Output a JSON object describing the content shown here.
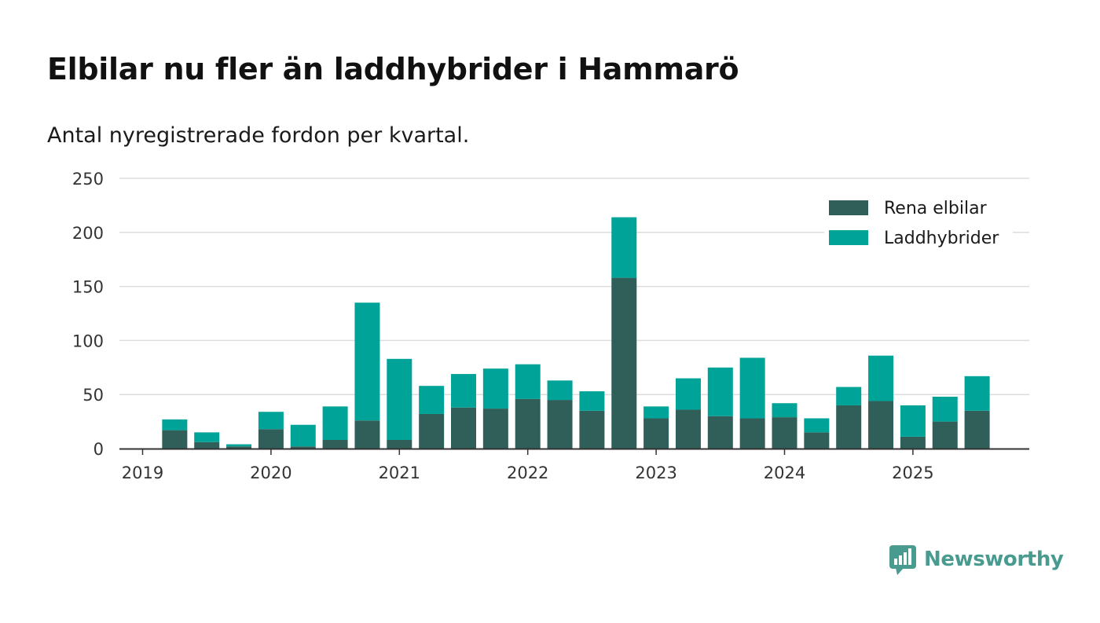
{
  "title": "Elbilar nu fler än laddhybrider i Hammarö",
  "subtitle": "Antal nyregistrerade fordon per kvartal.",
  "brand": {
    "name": "Newsworthy",
    "icon": "newsworthy-logo-icon",
    "color": "#4a9b8f"
  },
  "colors": {
    "rena_elbilar": "#2f5f58",
    "laddhybrider": "#00a398",
    "grid": "#dddddd",
    "axis": "#333333"
  },
  "chart_data": {
    "type": "bar",
    "stacked": true,
    "title": "Elbilar nu fler än laddhybrider i Hammarö",
    "subtitle": "Antal nyregistrerade fordon per kvartal.",
    "xlabel": "",
    "ylabel": "",
    "ylim": [
      0,
      250
    ],
    "yticks": [
      0,
      50,
      100,
      150,
      200,
      250
    ],
    "xtick_labels": [
      "2019",
      "2020",
      "2021",
      "2022",
      "2023",
      "2024",
      "2025"
    ],
    "legend_position": "top-right",
    "categories": [
      "2019 Q1",
      "2019 Q2",
      "2019 Q3",
      "2019 Q4",
      "2020 Q1",
      "2020 Q2",
      "2020 Q3",
      "2020 Q4",
      "2021 Q1",
      "2021 Q2",
      "2021 Q3",
      "2021 Q4",
      "2022 Q1",
      "2022 Q2",
      "2022 Q3",
      "2022 Q4",
      "2023 Q1",
      "2023 Q2",
      "2023 Q3",
      "2023 Q4",
      "2024 Q1",
      "2024 Q2",
      "2024 Q3",
      "2024 Q4",
      "2025 Q1",
      "2025 Q2",
      "2025 Q3"
    ],
    "series": [
      {
        "name": "Rena elbilar",
        "values": [
          0,
          17,
          6,
          2,
          18,
          2,
          8,
          26,
          8,
          32,
          38,
          37,
          46,
          45,
          35,
          158,
          28,
          36,
          30,
          28,
          29,
          15,
          40,
          44,
          11,
          25,
          35
        ]
      },
      {
        "name": "Laddhybrider",
        "values": [
          0,
          10,
          9,
          2,
          16,
          20,
          31,
          109,
          75,
          26,
          31,
          37,
          32,
          18,
          18,
          56,
          11,
          29,
          45,
          56,
          13,
          13,
          17,
          42,
          29,
          23,
          32
        ]
      }
    ]
  }
}
